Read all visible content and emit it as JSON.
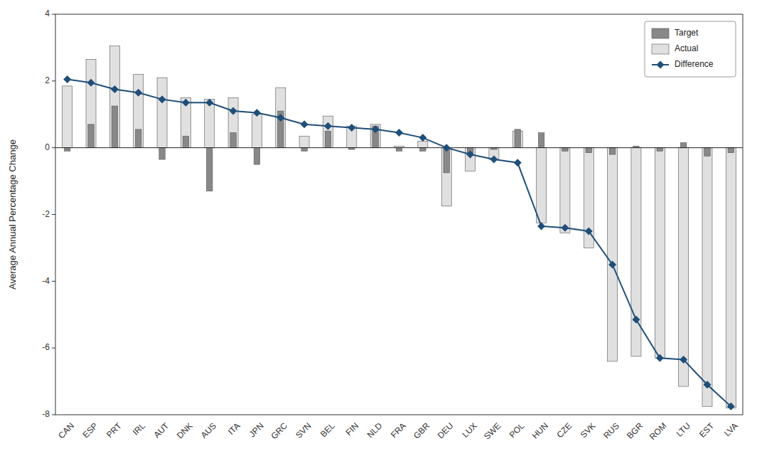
{
  "chart_data": {
    "type": "bar",
    "y_label": "Average Annual Percentage Change",
    "categories": [
      "CAN",
      "ESP",
      "PRT",
      "IRL",
      "AUT",
      "DNK",
      "AUS",
      "ITA",
      "JPN",
      "GRC",
      "SVN",
      "BEL",
      "FIN",
      "NLD",
      "FRA",
      "GBR",
      "DEU",
      "LUX",
      "SWE",
      "POL",
      "HUN",
      "CZE",
      "SVK",
      "RUS",
      "BGR",
      "ROM",
      "LTU",
      "EST",
      "LVA"
    ],
    "series": [
      {
        "name": "Target",
        "type": "bar",
        "color": "#888888",
        "values": [
          -0.1,
          0.7,
          1.25,
          0.55,
          -0.35,
          0.35,
          -1.3,
          0.45,
          -0.5,
          1.1,
          -0.1,
          0.5,
          -0.05,
          0.65,
          -0.1,
          -0.1,
          -0.75,
          -0.15,
          -0.05,
          0.55,
          0.45,
          -0.1,
          -0.15,
          -0.2,
          0.05,
          -0.1,
          0.15,
          -0.25,
          -0.15
        ]
      },
      {
        "name": "Actual",
        "type": "bar",
        "color": "#e0e0e0",
        "values": [
          1.85,
          2.65,
          3.05,
          2.2,
          2.1,
          1.5,
          1.45,
          1.5,
          1.0,
          1.8,
          0.35,
          0.95,
          0.65,
          0.7,
          0.05,
          0.2,
          -1.75,
          -0.7,
          -0.35,
          0.5,
          -2.25,
          -2.55,
          -3.0,
          -6.4,
          -6.25,
          -6.3,
          -7.15,
          -7.75,
          -7.8
        ]
      },
      {
        "name": "Difference",
        "type": "line",
        "color": "#1f4e79",
        "marker": "diamond",
        "values": [
          2.05,
          1.95,
          1.75,
          1.65,
          1.45,
          1.35,
          1.35,
          1.1,
          1.05,
          0.9,
          0.7,
          0.65,
          0.6,
          0.55,
          0.45,
          0.3,
          0.0,
          -0.2,
          -0.35,
          -0.45,
          -2.35,
          -2.4,
          -2.5,
          -3.5,
          -5.15,
          -6.3,
          -6.35,
          -7.1,
          -7.75
        ]
      }
    ],
    "ylim": [
      -8,
      4
    ],
    "yticks": [
      -8,
      -6,
      -4,
      -2,
      0,
      2,
      4
    ],
    "grid": false,
    "legend": "upper right"
  }
}
